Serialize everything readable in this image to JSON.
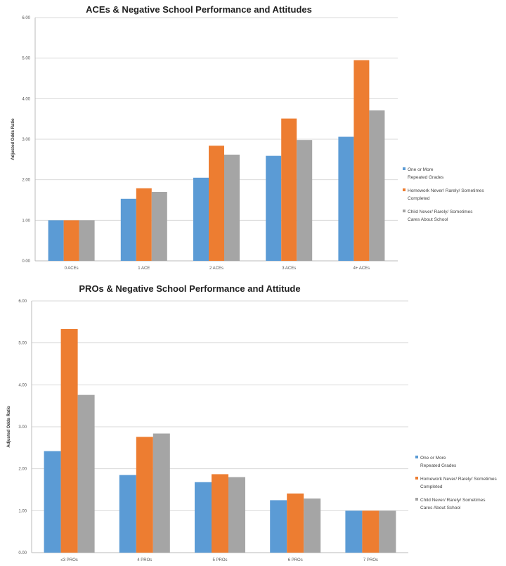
{
  "chart_data": [
    {
      "type": "bar",
      "title": "ACEs & Negative School Performance  and Attitudes",
      "xlabel": "",
      "ylabel": "Adjusted Odds Ratio",
      "ylim": [
        0,
        6
      ],
      "yticks": [
        "0.00",
        "1.00",
        "2.00",
        "3.00",
        "4.00",
        "5.00",
        "6.00"
      ],
      "grid": true,
      "legend_position": "right",
      "categories": [
        "0 ACEs",
        "1 ACE",
        "2 ACEs",
        "3 ACEs",
        "4+ ACEs"
      ],
      "series": [
        {
          "name": "One or More Repeated Grades",
          "legend_lines": [
            "One or More",
            "Repeated Grades"
          ],
          "color": "#5b9bd5",
          "values": [
            1.0,
            1.53,
            2.05,
            2.59,
            3.06
          ]
        },
        {
          "name": "Homework Never/ Rarely/ Sometimes Completed",
          "legend_lines": [
            "Homework Never/ Rarely/ Sometimes",
            "Completed"
          ],
          "color": "#ed7d31",
          "values": [
            1.0,
            1.79,
            2.84,
            3.51,
            4.95
          ]
        },
        {
          "name": "Child Never/ Rarely/ Sometimes Cares About School",
          "legend_lines": [
            "Child Never/ Rarely/ Sometimes",
            "Cares About School"
          ],
          "color": "#a5a5a5",
          "values": [
            1.0,
            1.7,
            2.62,
            2.98,
            3.71
          ]
        }
      ]
    },
    {
      "type": "bar",
      "title": "PROs & Negative School Performance and Attitude",
      "xlabel": "",
      "ylabel": "Adjusted Odds Ratio",
      "ylim": [
        0,
        6
      ],
      "yticks": [
        "0.00",
        "1.00",
        "2.00",
        "3.00",
        "4.00",
        "5.00",
        "6.00"
      ],
      "grid": true,
      "legend_position": "right",
      "categories": [
        "≤3 PROs",
        "4 PROs",
        "5 PROs",
        "6 PROs",
        "7 PROs"
      ],
      "series": [
        {
          "name": "One or More Repeated Grades",
          "legend_lines": [
            "One or More",
            "Repeated Grades"
          ],
          "color": "#5b9bd5",
          "values": [
            2.42,
            1.85,
            1.68,
            1.25,
            1.0
          ]
        },
        {
          "name": "Homework Never/ Rarely/ Sometimes Completed",
          "legend_lines": [
            "Homework Never/ Rarely/ Sometimes",
            "Completed"
          ],
          "color": "#ed7d31",
          "values": [
            5.33,
            2.76,
            1.87,
            1.41,
            1.0
          ]
        },
        {
          "name": "Child Never/ Rarely/ Sometimes Cares About School",
          "legend_lines": [
            "Child Never/ Rarely/ Sometimes",
            "Cares About School"
          ],
          "color": "#a5a5a5",
          "values": [
            3.76,
            2.84,
            1.8,
            1.29,
            1.0
          ]
        }
      ]
    }
  ]
}
